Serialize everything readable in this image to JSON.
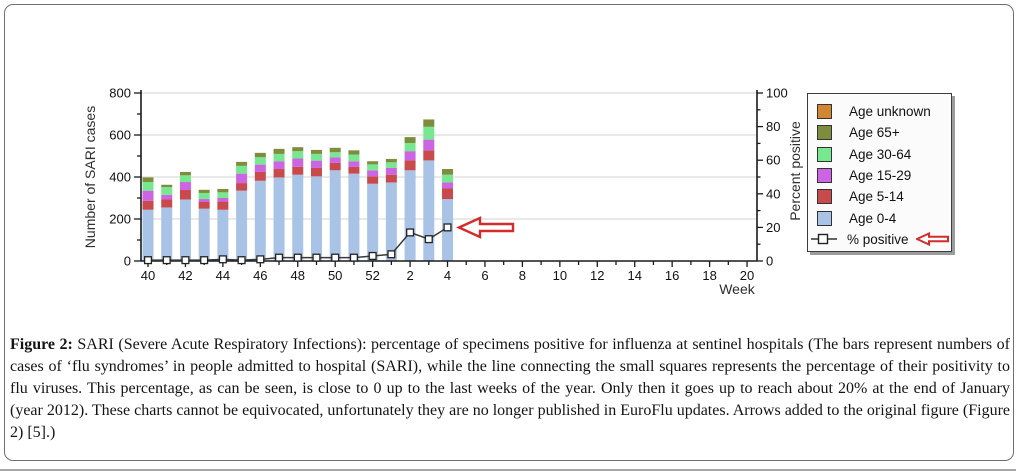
{
  "figure": {
    "caption_label": "Figure 2:",
    "caption_text": " SARI (Severe Acute Respiratory Infections): percentage of specimens positive for influenza at sentinel hospitals (The bars represent numbers of cases of ‘flu syndromes’ in people admitted to hospital (SARI), while the line connecting the small squares represents the percentage of their positivity to flu viruses. This percentage, as can be seen, is close to 0 up to the last weeks of the year. Only then it goes up to reach about 20% at the end of January (year 2012). These charts cannot be equivocated, unfortunately they are no longer published in EuroFlu updates. Arrows added to the original figure (Figure 2) [5].)"
  },
  "legend": {
    "items": [
      {
        "label": "Age unknown",
        "color": "#d08633"
      },
      {
        "label": "Age 65+",
        "color": "#7e8c3d"
      },
      {
        "label": "Age 30-64",
        "color": "#77e88f"
      },
      {
        "label": "Age 15-29",
        "color": "#cb65e3"
      },
      {
        "label": "Age 5-14",
        "color": "#c94a4c"
      },
      {
        "label": "Age 0-4",
        "color": "#a9c3e6"
      },
      {
        "label": "% positive"
      }
    ]
  },
  "colors": {
    "arrow": "#d42b2b",
    "grid": "#dcdcdc",
    "axis": "#1a1a1a",
    "line": "#3a3a3a"
  },
  "chart_data": {
    "type": "bar",
    "stacked": true,
    "title": "",
    "xlabel": "Week",
    "ylabel_left": "Number of SARI cases",
    "ylabel_right": "Percent positive",
    "grid": "horizontal",
    "legend_position": "right-outside",
    "x_categories": [
      "40",
      "41",
      "42",
      "43",
      "44",
      "45",
      "46",
      "47",
      "48",
      "49",
      "50",
      "51",
      "52",
      "1",
      "2",
      "3",
      "4"
    ],
    "x_axis_ticks": [
      "40",
      "42",
      "44",
      "46",
      "48",
      "50",
      "52",
      "2",
      "4",
      "6",
      "8",
      "10",
      "12",
      "14",
      "16",
      "18",
      "20"
    ],
    "x_axis_weeks_total": 33,
    "left_axis": {
      "min": 0,
      "max": 800,
      "ticks": [
        0,
        200,
        400,
        600,
        800
      ],
      "minor_step": 100
    },
    "right_axis": {
      "min": 0,
      "max": 100,
      "ticks": [
        0,
        20,
        40,
        60,
        80,
        100
      ],
      "minor_step": 10
    },
    "series": [
      {
        "name": "Age 0-4",
        "color": "#a9c3e6",
        "values": [
          244,
          255,
          293,
          249,
          244,
          335,
          382,
          398,
          411,
          403,
          432,
          416,
          368,
          374,
          432,
          479,
          295
        ]
      },
      {
        "name": "Age 5-14",
        "color": "#c94a4c",
        "values": [
          43,
          38,
          45,
          32,
          40,
          36,
          42,
          40,
          38,
          40,
          35,
          32,
          35,
          37,
          47,
          48,
          52
        ]
      },
      {
        "name": "Age 15-29",
        "color": "#cb65e3",
        "values": [
          48,
          22,
          38,
          14,
          16,
          45,
          35,
          37,
          39,
          35,
          27,
          27,
          29,
          32,
          44,
          51,
          27
        ]
      },
      {
        "name": "Age 30-64",
        "color": "#77e88f",
        "values": [
          41,
          37,
          32,
          29,
          27,
          37,
          35,
          35,
          35,
          32,
          24,
          32,
          28,
          27,
          39,
          61,
          37
        ]
      },
      {
        "name": "Age 65+",
        "color": "#7e8c3d",
        "values": [
          22,
          11,
          16,
          15,
          16,
          19,
          21,
          24,
          19,
          19,
          21,
          20,
          15,
          16,
          28,
          35,
          27
        ]
      },
      {
        "name": "Age unknown",
        "color": "#d08633",
        "values": [
          0,
          0,
          0,
          0,
          0,
          0,
          0,
          0,
          0,
          0,
          0,
          0,
          0,
          0,
          0,
          0,
          0
        ]
      }
    ],
    "line_series": {
      "name": "% positive",
      "axis": "right",
      "values": [
        0.5,
        0.5,
        0.5,
        0.5,
        1,
        0.5,
        1,
        2,
        2,
        2,
        2,
        2,
        3,
        4,
        17,
        13,
        20
      ]
    },
    "annotations": [
      "red outlined arrow pointing left at the week-4 % positive marker",
      "red outlined arrow pointing left at the % positive legend entry"
    ]
  }
}
